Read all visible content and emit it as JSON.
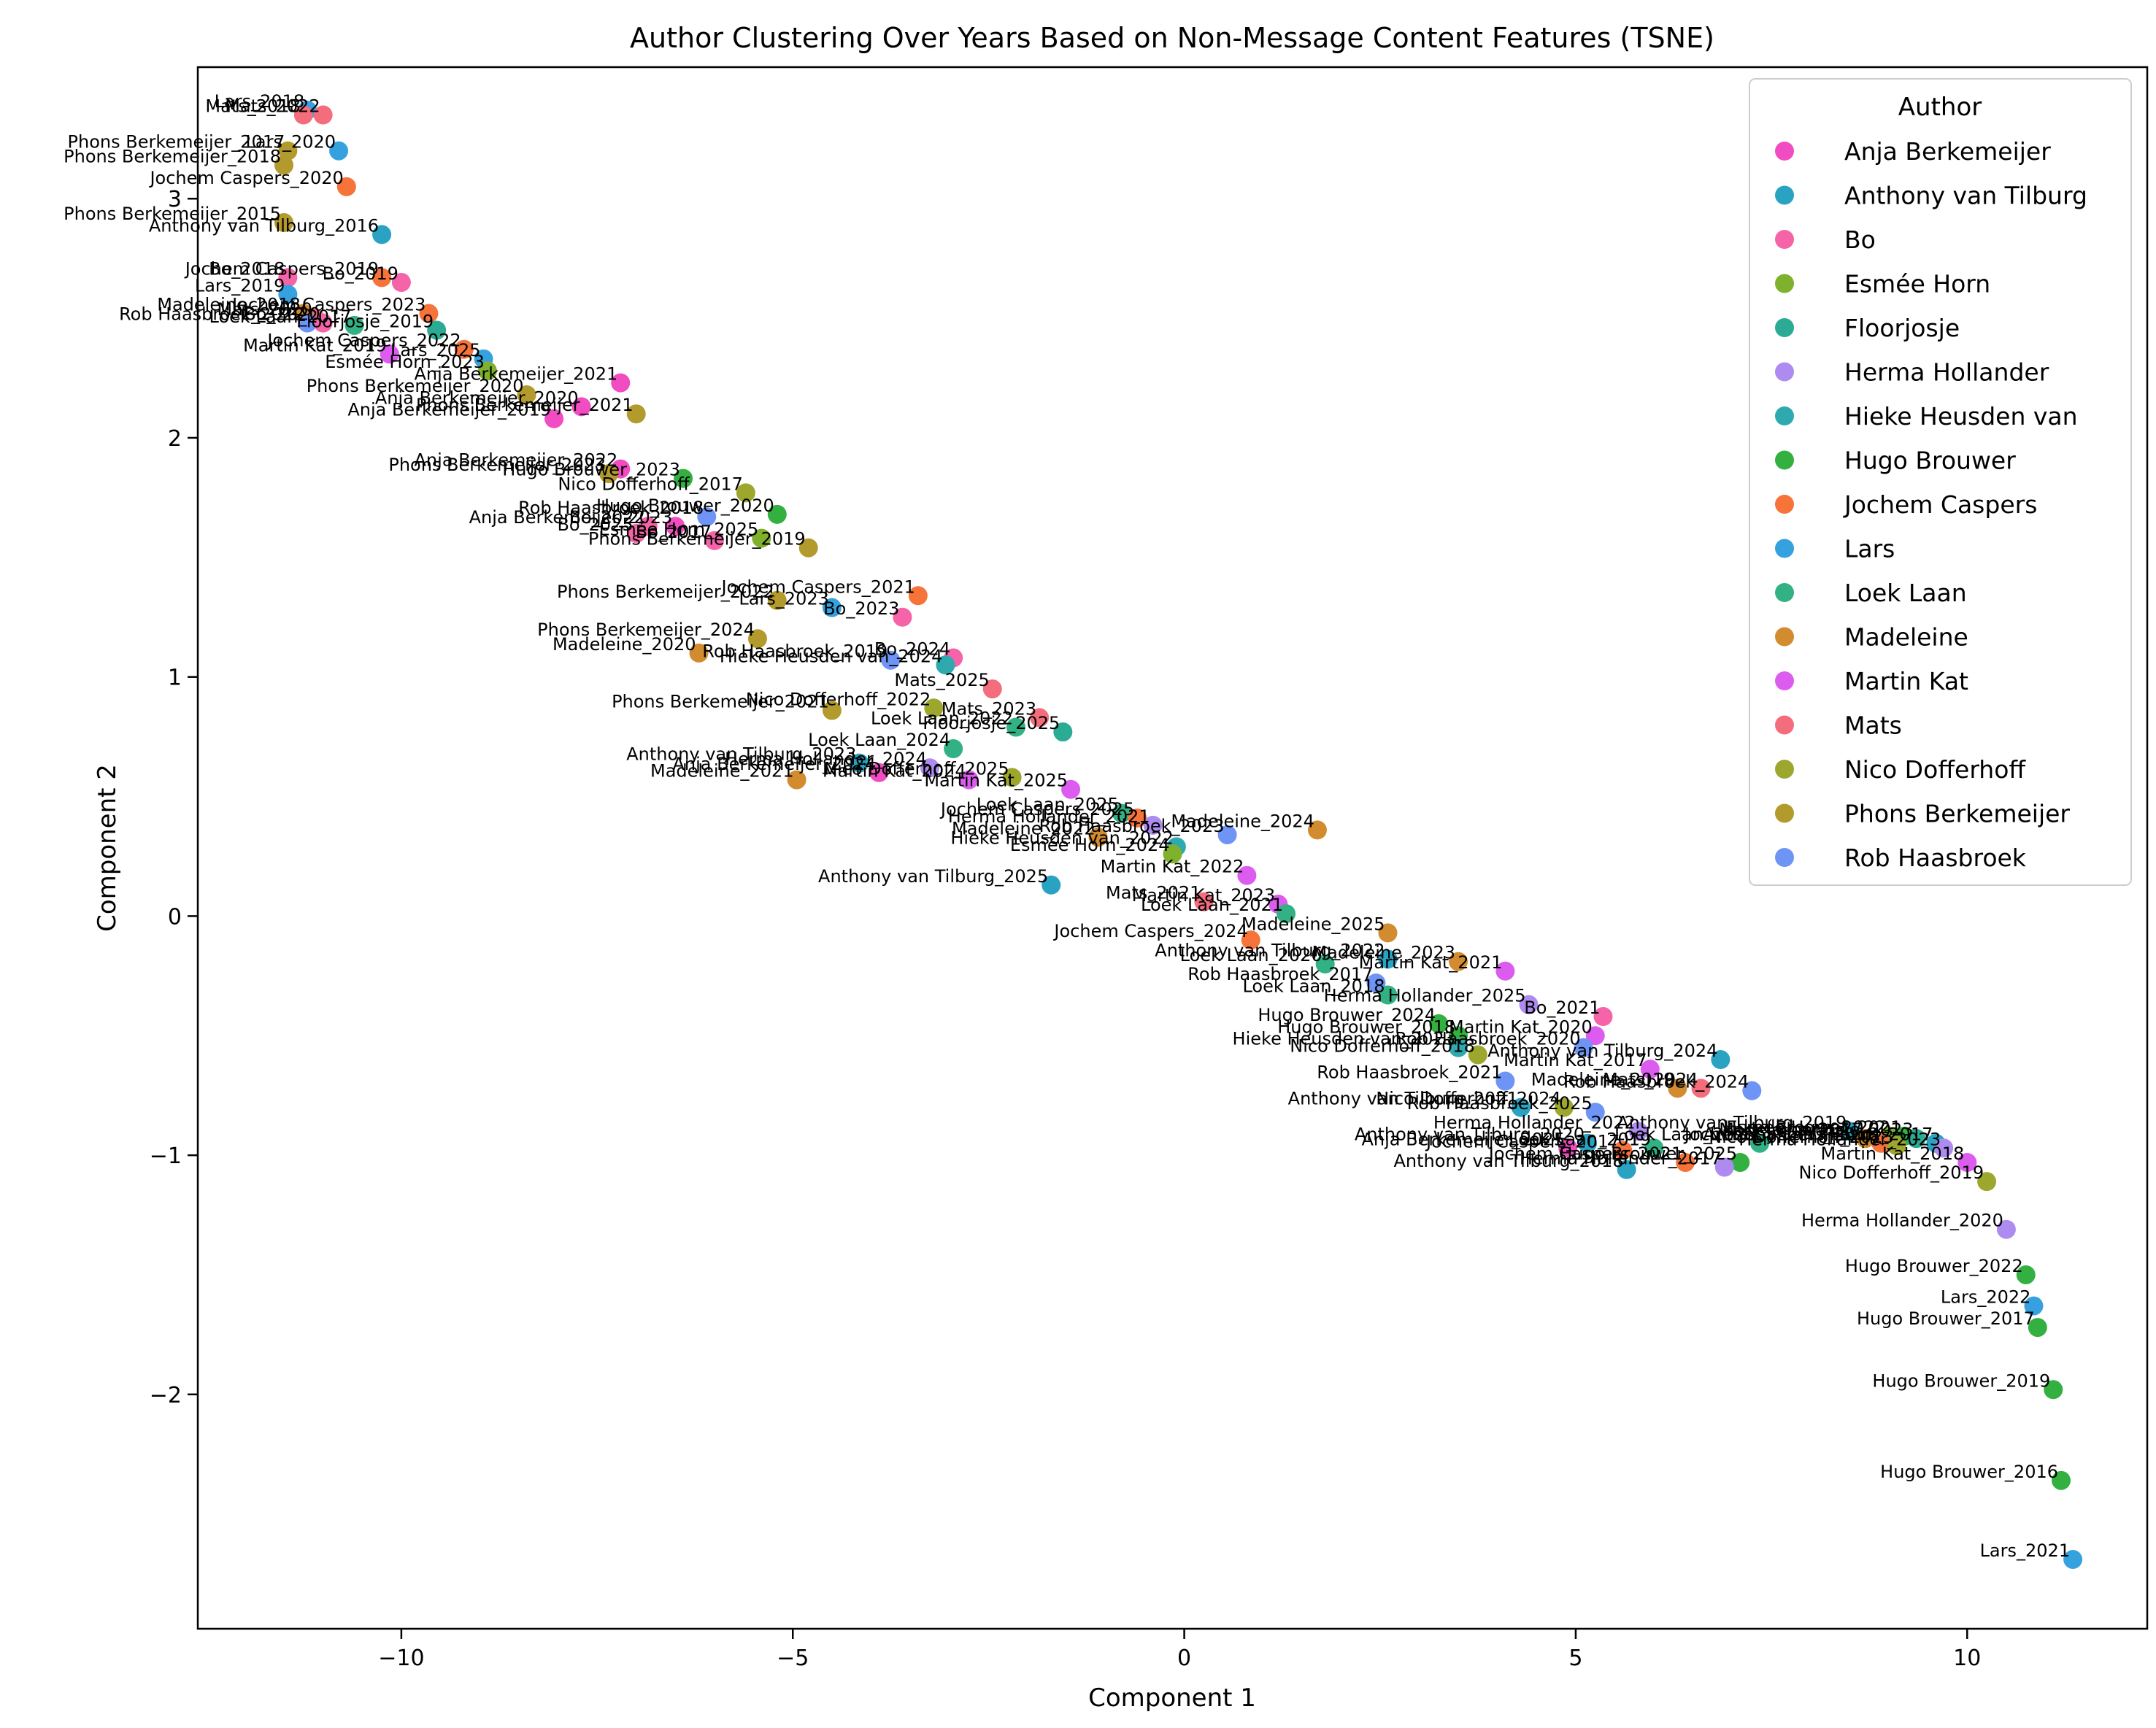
{
  "chart_data": {
    "type": "scatter",
    "title": "Author Clustering Over Years Based on Non-Message Content Features (TSNE)",
    "xlabel": "Component 1",
    "ylabel": "Component 2",
    "xlim": [
      -12.6,
      12.3
    ],
    "ylim": [
      -2.98,
      3.55
    ],
    "xticks": [
      -10,
      -5,
      0,
      5,
      10
    ],
    "yticks": [
      -2,
      -1,
      0,
      1,
      2,
      3
    ],
    "xtick_labels": [
      "−10",
      "−5",
      "0",
      "5",
      "10"
    ],
    "ytick_labels": [
      "−2",
      "−1",
      "0",
      "1",
      "2",
      "3"
    ],
    "legend": {
      "title": "Author",
      "placement": "top-right"
    },
    "authors": [
      {
        "name": "Anja Berkemeijer",
        "color": "#f14cc1"
      },
      {
        "name": "Anthony van Tilburg",
        "color": "#2aa3c2"
      },
      {
        "name": "Bo",
        "color": "#f563a8"
      },
      {
        "name": "Esmée Horn",
        "color": "#7fb12c"
      },
      {
        "name": "Floorjosje",
        "color": "#2bab93"
      },
      {
        "name": "Herma Hollander",
        "color": "#ad8bf0"
      },
      {
        "name": "Hieke Heusden van",
        "color": "#2fa9b0"
      },
      {
        "name": "Hugo Brouwer",
        "color": "#33b040"
      },
      {
        "name": "Jochem Caspers",
        "color": "#f6733a"
      },
      {
        "name": "Lars",
        "color": "#35a2df"
      },
      {
        "name": "Loek Laan",
        "color": "#32b184"
      },
      {
        "name": "Madeleine",
        "color": "#d38b2f"
      },
      {
        "name": "Martin Kat",
        "color": "#dd5cf0"
      },
      {
        "name": "Mats",
        "color": "#f46d7c"
      },
      {
        "name": "Nico Dofferhoff",
        "color": "#9da72d"
      },
      {
        "name": "Phons Berkemeijer",
        "color": "#b39a2c"
      },
      {
        "name": "Rob Haasbroek",
        "color": "#6e94f5"
      }
    ],
    "points": [
      {
        "label": "Lars_2018",
        "author": "Lars",
        "x": -11.2,
        "y": 3.37
      },
      {
        "label": "Mats_2022",
        "author": "Mats",
        "x": -11.0,
        "y": 3.35
      },
      {
        "label": "Mats_2018",
        "author": "Mats",
        "x": -11.25,
        "y": 3.35
      },
      {
        "label": "Lars_2020",
        "author": "Lars",
        "x": -10.8,
        "y": 3.2
      },
      {
        "label": "Phons Berkemeijer_2017",
        "author": "Phons Berkemeijer",
        "x": -11.45,
        "y": 3.2
      },
      {
        "label": "Phons Berkemeijer_2018",
        "author": "Phons Berkemeijer",
        "x": -11.5,
        "y": 3.14
      },
      {
        "label": "Jochem Caspers_2020",
        "author": "Jochem Caspers",
        "x": -10.7,
        "y": 3.05
      },
      {
        "label": "Phons Berkemeijer_2015",
        "author": "Phons Berkemeijer",
        "x": -11.5,
        "y": 2.9
      },
      {
        "label": "Anthony van Tilburg_2016",
        "author": "Anthony van Tilburg",
        "x": -10.25,
        "y": 2.85
      },
      {
        "label": "Jochem Caspers_2019",
        "author": "Jochem Caspers",
        "x": -10.25,
        "y": 2.67
      },
      {
        "label": "Bo_2019",
        "author": "Bo",
        "x": -10.0,
        "y": 2.65
      },
      {
        "label": "Bo_2018",
        "author": "Bo",
        "x": -11.45,
        "y": 2.67
      },
      {
        "label": "Lars_2019",
        "author": "Lars",
        "x": -11.45,
        "y": 2.6
      },
      {
        "label": "Madeleine_2018",
        "author": "Madeleine",
        "x": -11.25,
        "y": 2.52
      },
      {
        "label": "Mats_2020",
        "author": "Mats",
        "x": -11.1,
        "y": 2.5
      },
      {
        "label": "Rob Haasbroek_2022",
        "author": "Rob Haasbroek",
        "x": -11.2,
        "y": 2.48
      },
      {
        "label": "Bo_2020",
        "author": "Bo",
        "x": -11.0,
        "y": 2.48
      },
      {
        "label": "Jochem Caspers_2023",
        "author": "Jochem Caspers",
        "x": -9.65,
        "y": 2.52
      },
      {
        "label": "Loek Laan_2017",
        "author": "Loek Laan",
        "x": -10.6,
        "y": 2.47
      },
      {
        "label": "Floorjosje_2019",
        "author": "Floorjosje",
        "x": -9.55,
        "y": 2.45
      },
      {
        "label": "Jochem Caspers_2022",
        "author": "Jochem Caspers",
        "x": -9.2,
        "y": 2.37
      },
      {
        "label": "Martin Kat_2019",
        "author": "Martin Kat",
        "x": -10.15,
        "y": 2.35
      },
      {
        "label": "Lars_2025",
        "author": "Lars",
        "x": -8.95,
        "y": 2.33
      },
      {
        "label": "Esmée Horn_2023",
        "author": "Esmée Horn",
        "x": -8.9,
        "y": 2.28
      },
      {
        "label": "Anja Berkemeijer_2021",
        "author": "Anja Berkemeijer",
        "x": -7.2,
        "y": 2.23
      },
      {
        "label": "Phons Berkemeijer_2020",
        "author": "Phons Berkemeijer",
        "x": -8.4,
        "y": 2.18
      },
      {
        "label": "Anja Berkemeijer_2020",
        "author": "Anja Berkemeijer",
        "x": -7.7,
        "y": 2.13
      },
      {
        "label": "Anja Berkemeijer_2019",
        "author": "Anja Berkemeijer",
        "x": -8.05,
        "y": 2.08
      },
      {
        "label": "Phons Berkemeijer_2021",
        "author": "Phons Berkemeijer",
        "x": -7.0,
        "y": 2.1
      },
      {
        "label": "Anja Berkemeijer_2022",
        "author": "Anja Berkemeijer",
        "x": -7.2,
        "y": 1.87
      },
      {
        "label": "Phons Berkemeijer_2023",
        "author": "Phons Berkemeijer",
        "x": -7.35,
        "y": 1.85
      },
      {
        "label": "Hugo Brouwer_2023",
        "author": "Hugo Brouwer",
        "x": -6.4,
        "y": 1.83
      },
      {
        "label": "Nico Dofferhoff_2017",
        "author": "Nico Dofferhoff",
        "x": -5.6,
        "y": 1.77
      },
      {
        "label": "Hugo Brouwer_2020",
        "author": "Hugo Brouwer",
        "x": -5.2,
        "y": 1.68
      },
      {
        "label": "Rob Haasbroek_2018",
        "author": "Rob Haasbroek",
        "x": -6.1,
        "y": 1.67
      },
      {
        "label": "Anja Berkemeijer_2023",
        "author": "Anja Berkemeijer",
        "x": -6.5,
        "y": 1.63
      },
      {
        "label": "Bo_2022",
        "author": "Bo",
        "x": -6.85,
        "y": 1.63
      },
      {
        "label": "Bo_2025",
        "author": "Bo",
        "x": -7.0,
        "y": 1.6
      },
      {
        "label": "Esmée Horn_2025",
        "author": "Esmée Horn",
        "x": -5.4,
        "y": 1.58
      },
      {
        "label": "Bo_2017",
        "author": "Bo",
        "x": -6.0,
        "y": 1.57
      },
      {
        "label": "Phons Berkemeijer_2019",
        "author": "Phons Berkemeijer",
        "x": -4.8,
        "y": 1.54
      },
      {
        "label": "Jochem Caspers_2021",
        "author": "Jochem Caspers",
        "x": -3.4,
        "y": 1.34
      },
      {
        "label": "Phons Berkemeijer_2022",
        "author": "Phons Berkemeijer",
        "x": -5.2,
        "y": 1.32
      },
      {
        "label": "Lars_2023",
        "author": "Lars",
        "x": -4.5,
        "y": 1.29
      },
      {
        "label": "Bo_2023",
        "author": "Bo",
        "x": -3.6,
        "y": 1.25
      },
      {
        "label": "Phons Berkemeijer_2024",
        "author": "Phons Berkemeijer",
        "x": -5.45,
        "y": 1.16
      },
      {
        "label": "Madeleine_2020",
        "author": "Madeleine",
        "x": -6.2,
        "y": 1.1
      },
      {
        "label": "Bo_2024",
        "author": "Bo",
        "x": -2.95,
        "y": 1.08
      },
      {
        "label": "Rob Haasbroek_2019",
        "author": "Rob Haasbroek",
        "x": -3.75,
        "y": 1.07
      },
      {
        "label": "Hieke Heusden van_2024",
        "author": "Hieke Heusden van",
        "x": -3.05,
        "y": 1.05
      },
      {
        "label": "Mats_2025",
        "author": "Mats",
        "x": -2.45,
        "y": 0.95
      },
      {
        "label": "Nico Dofferhoff_2022",
        "author": "Nico Dofferhoff",
        "x": -3.2,
        "y": 0.87
      },
      {
        "label": "Phons Berkemeijer_2021",
        "author": "Phons Berkemeijer",
        "x": -4.5,
        "y": 0.86
      },
      {
        "label": "Mats_2023",
        "author": "Mats",
        "x": -1.85,
        "y": 0.83
      },
      {
        "label": "Loek Laan_2022",
        "author": "Loek Laan",
        "x": -2.15,
        "y": 0.79
      },
      {
        "label": "Floorjosje_2025",
        "author": "Floorjosje",
        "x": -1.55,
        "y": 0.77
      },
      {
        "label": "Loek Laan_2024",
        "author": "Loek Laan",
        "x": -2.95,
        "y": 0.7
      },
      {
        "label": "Anthony van Tilburg_2023",
        "author": "Anthony van Tilburg",
        "x": -4.15,
        "y": 0.64
      },
      {
        "label": "Herma Hollander_2024",
        "author": "Herma Hollander",
        "x": -3.25,
        "y": 0.62
      },
      {
        "label": "Anja Berkemeijer_2024",
        "author": "Anja Berkemeijer",
        "x": -3.9,
        "y": 0.6
      },
      {
        "label": "Nico Dofferhoff_2025",
        "author": "Nico Dofferhoff",
        "x": -2.2,
        "y": 0.58
      },
      {
        "label": "Madeleine_2021",
        "author": "Madeleine",
        "x": -4.95,
        "y": 0.57
      },
      {
        "label": "Martin Kat_2024",
        "author": "Martin Kat",
        "x": -2.75,
        "y": 0.57
      },
      {
        "label": "Martin Kat_2025",
        "author": "Martin Kat",
        "x": -1.45,
        "y": 0.53
      },
      {
        "label": "Loek Laan_2025",
        "author": "Loek Laan",
        "x": -0.8,
        "y": 0.43
      },
      {
        "label": "Jochem Caspers_2025",
        "author": "Jochem Caspers",
        "x": -0.6,
        "y": 0.41
      },
      {
        "label": "Herma Hollander_2021",
        "author": "Herma Hollander",
        "x": -0.4,
        "y": 0.38
      },
      {
        "label": "Madeleine_2024",
        "author": "Madeleine",
        "x": 1.7,
        "y": 0.36
      },
      {
        "label": "Rob Haasbroek_2023",
        "author": "Rob Haasbroek",
        "x": 0.55,
        "y": 0.34
      },
      {
        "label": "Madeleine_2022",
        "author": "Madeleine",
        "x": -1.1,
        "y": 0.33
      },
      {
        "label": "Hieke Heusden van_2022",
        "author": "Hieke Heusden van",
        "x": -0.1,
        "y": 0.29
      },
      {
        "label": "Esmée Horn_2024",
        "author": "Esmée Horn",
        "x": -0.15,
        "y": 0.26
      },
      {
        "label": "Martin Kat_2022",
        "author": "Martin Kat",
        "x": 0.8,
        "y": 0.17
      },
      {
        "label": "Anthony van Tilburg_2025",
        "author": "Anthony van Tilburg",
        "x": -1.7,
        "y": 0.13
      },
      {
        "label": "Martin Kat_2023",
        "author": "Martin Kat",
        "x": 1.2,
        "y": 0.05
      },
      {
        "label": "Mats_2021",
        "author": "Mats",
        "x": 0.25,
        "y": 0.06
      },
      {
        "label": "Loek Laan_2021",
        "author": "Loek Laan",
        "x": 1.3,
        "y": 0.01
      },
      {
        "label": "Madeleine_2025",
        "author": "Madeleine",
        "x": 2.6,
        "y": -0.07
      },
      {
        "label": "Jochem Caspers_2024",
        "author": "Jochem Caspers",
        "x": 0.85,
        "y": -0.1
      },
      {
        "label": "Anthony van Tilburg_2022",
        "author": "Anthony van Tilburg",
        "x": 2.6,
        "y": -0.18
      },
      {
        "label": "Madeleine_2023",
        "author": "Madeleine",
        "x": 3.5,
        "y": -0.19
      },
      {
        "label": "Loek Laan_2020",
        "author": "Loek Laan",
        "x": 1.8,
        "y": -0.2
      },
      {
        "label": "Martin Kat_2021",
        "author": "Martin Kat",
        "x": 4.1,
        "y": -0.23
      },
      {
        "label": "Rob Haasbroek_2017",
        "author": "Rob Haasbroek",
        "x": 2.45,
        "y": -0.28
      },
      {
        "label": "Loek Laan_2018",
        "author": "Loek Laan",
        "x": 2.6,
        "y": -0.33
      },
      {
        "label": "Herma Hollander_2025",
        "author": "Herma Hollander",
        "x": 4.4,
        "y": -0.37
      },
      {
        "label": "Bo_2021",
        "author": "Bo",
        "x": 5.35,
        "y": -0.42
      },
      {
        "label": "Hugo Brouwer_2024",
        "author": "Hugo Brouwer",
        "x": 3.25,
        "y": -0.45
      },
      {
        "label": "Martin Kat_2020",
        "author": "Martin Kat",
        "x": 5.25,
        "y": -0.5
      },
      {
        "label": "Hugo Brouwer_2018",
        "author": "Hugo Brouwer",
        "x": 3.5,
        "y": -0.5
      },
      {
        "label": "Rob Haasbroek_2020",
        "author": "Rob Haasbroek",
        "x": 5.1,
        "y": -0.55
      },
      {
        "label": "Hieke Heusden van_2023",
        "author": "Hieke Heusden van",
        "x": 3.5,
        "y": -0.55
      },
      {
        "label": "Nico Dofferhoff_2018",
        "author": "Nico Dofferhoff",
        "x": 3.75,
        "y": -0.58
      },
      {
        "label": "Anthony van Tilburg_2024",
        "author": "Anthony van Tilburg",
        "x": 6.85,
        "y": -0.6
      },
      {
        "label": "Martin Kat_2017",
        "author": "Martin Kat",
        "x": 5.95,
        "y": -0.64
      },
      {
        "label": "Rob Haasbroek_2021",
        "author": "Rob Haasbroek",
        "x": 4.1,
        "y": -0.69
      },
      {
        "label": "Madeleine_2019",
        "author": "Madeleine",
        "x": 6.3,
        "y": -0.72
      },
      {
        "label": "Mats_2024",
        "author": "Mats",
        "x": 6.6,
        "y": -0.72
      },
      {
        "label": "Rob Haasbroek_2024",
        "author": "Rob Haasbroek",
        "x": 7.25,
        "y": -0.73
      },
      {
        "label": "Anthony van Tilburg_2021",
        "author": "Anthony van Tilburg",
        "x": 4.3,
        "y": -0.8
      },
      {
        "label": "Nico Dofferhoff_2024",
        "author": "Nico Dofferhoff",
        "x": 4.85,
        "y": -0.8
      },
      {
        "label": "Rob Haasbroek_2025",
        "author": "Rob Haasbroek",
        "x": 5.25,
        "y": -0.82
      },
      {
        "label": "Herma Hollander_2022",
        "author": "Herma Hollander",
        "x": 5.8,
        "y": -0.9
      },
      {
        "label": "Loek Laan_2023",
        "author": "Loek Laan",
        "x": 7.35,
        "y": -0.95
      },
      {
        "label": "Anthony van Tilburg_2019",
        "author": "Anthony van Tilburg",
        "x": 8.5,
        "y": -0.9
      },
      {
        "label": "Esmée Horn_2022",
        "author": "Esmée Horn",
        "x": 9.0,
        "y": -0.92
      },
      {
        "label": "Jochem Caspers_2018",
        "author": "Jochem Caspers",
        "x": 8.9,
        "y": -0.95
      },
      {
        "label": "Hugo Brouwer_2021",
        "author": "Hugo Brouwer",
        "x": 9.2,
        "y": -0.92
      },
      {
        "label": "Floorjosje_2023",
        "author": "Floorjosje",
        "x": 9.35,
        "y": -0.93
      },
      {
        "label": "Nico Dofferhoff_2023",
        "author": "Nico Dofferhoff",
        "x": 9.1,
        "y": -0.96
      },
      {
        "label": "Madeleine_2017",
        "author": "Madeleine",
        "x": 8.7,
        "y": -0.93
      },
      {
        "label": "Anthony van Tilburg_2017",
        "author": "Anthony van Tilburg",
        "x": 9.6,
        "y": -0.95
      },
      {
        "label": "Herma Hollander_2023",
        "author": "Herma Hollander",
        "x": 9.7,
        "y": -0.97
      },
      {
        "label": "Martin Kat_2018",
        "author": "Martin Kat",
        "x": 10.0,
        "y": -1.03
      },
      {
        "label": "Anja Berkemeijer_2025",
        "author": "Anja Berkemeijer",
        "x": 4.9,
        "y": -0.97
      },
      {
        "label": "Anthony van Tilburg_2020",
        "author": "Anthony van Tilburg",
        "x": 5.15,
        "y": -0.95
      },
      {
        "label": "Jochem Caspers_2017",
        "author": "Jochem Caspers",
        "x": 5.6,
        "y": -0.98
      },
      {
        "label": "Loek Laan_2019",
        "author": "Loek Laan",
        "x": 6.0,
        "y": -0.97
      },
      {
        "label": "Hugo Brouwer_2025",
        "author": "Hugo Brouwer",
        "x": 7.1,
        "y": -1.03
      },
      {
        "label": "Herma Hollander_2017",
        "author": "Herma Hollander",
        "x": 6.9,
        "y": -1.05
      },
      {
        "label": "Jochem Caspers_2021",
        "author": "Jochem Caspers",
        "x": 6.4,
        "y": -1.03
      },
      {
        "label": "Anthony van Tilburg_2018",
        "author": "Anthony van Tilburg",
        "x": 5.65,
        "y": -1.06
      },
      {
        "label": "Nico Dofferhoff_2019",
        "author": "Nico Dofferhoff",
        "x": 10.25,
        "y": -1.11
      },
      {
        "label": "Herma Hollander_2020",
        "author": "Herma Hollander",
        "x": 10.5,
        "y": -1.31
      },
      {
        "label": "Hugo Brouwer_2022",
        "author": "Hugo Brouwer",
        "x": 10.75,
        "y": -1.5
      },
      {
        "label": "Lars_2022",
        "author": "Lars",
        "x": 10.85,
        "y": -1.63
      },
      {
        "label": "Hugo Brouwer_2017",
        "author": "Hugo Brouwer",
        "x": 10.9,
        "y": -1.72
      },
      {
        "label": "Hugo Brouwer_2019",
        "author": "Hugo Brouwer",
        "x": 11.1,
        "y": -1.98
      },
      {
        "label": "Hugo Brouwer_2016",
        "author": "Hugo Brouwer",
        "x": 11.2,
        "y": -2.36
      },
      {
        "label": "Lars_2021",
        "author": "Lars",
        "x": 11.35,
        "y": -2.69
      }
    ]
  }
}
